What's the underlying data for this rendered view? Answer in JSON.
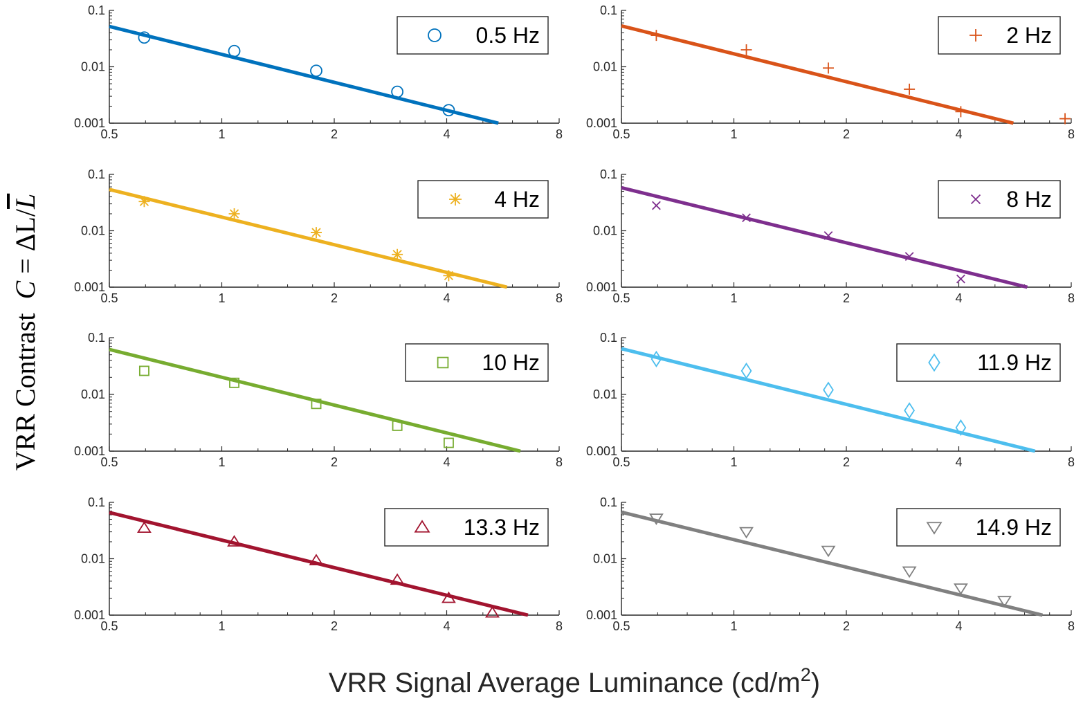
{
  "figure": {
    "xlabel": "VRR Signal Average Luminance (cd/m",
    "xlabel_sup": "2",
    "xlabel_tail": ")",
    "ylabel_text": "VRR Contrast",
    "ylabel_math_c": "C",
    "ylabel_math_eq": " = ΔL/",
    "ylabel_math_lbar": "L"
  },
  "chart_data": [
    {
      "type": "scatter",
      "title": "",
      "legend": "0.5 Hz",
      "legend_position": "top-right",
      "color": "#0072BD",
      "marker": "circle",
      "xscale": "log2",
      "yscale": "log10",
      "xlim": [
        0.5,
        8
      ],
      "ylim": [
        0.001,
        0.1
      ],
      "x_ticks": [
        0.5,
        1,
        2,
        4,
        8
      ],
      "x_tick_labels": [
        "0.5",
        "1",
        "2",
        "4",
        "8"
      ],
      "y_ticks": [
        0.001,
        0.01,
        0.1
      ],
      "y_tick_labels": [
        "0.001",
        "0.01",
        "0.1"
      ],
      "points": {
        "x": [
          0.62,
          1.08,
          1.79,
          2.95,
          4.05
        ],
        "y": [
          0.033,
          0.019,
          0.0085,
          0.0036,
          0.0017
        ]
      },
      "fit_line": {
        "x": [
          0.5,
          5.5
        ],
        "y": [
          0.052,
          0.001
        ]
      }
    },
    {
      "type": "scatter",
      "title": "",
      "legend": "2 Hz",
      "legend_position": "top-right",
      "color": "#D95319",
      "marker": "plus",
      "xscale": "log2",
      "yscale": "log10",
      "xlim": [
        0.5,
        8
      ],
      "ylim": [
        0.001,
        0.1
      ],
      "x_ticks": [
        0.5,
        1,
        2,
        4,
        8
      ],
      "x_tick_labels": [
        "0.5",
        "1",
        "2",
        "4",
        "8"
      ],
      "y_ticks": [
        0.001,
        0.01,
        0.1
      ],
      "y_tick_labels": [
        "0.001",
        "0.01",
        "0.1"
      ],
      "points": {
        "x": [
          0.62,
          1.08,
          1.79,
          2.95,
          4.05,
          7.7
        ],
        "y": [
          0.036,
          0.02,
          0.0095,
          0.004,
          0.0016,
          0.0012
        ]
      },
      "fit_line": {
        "x": [
          0.5,
          5.6
        ],
        "y": [
          0.053,
          0.001
        ]
      }
    },
    {
      "type": "scatter",
      "title": "",
      "legend": "4 Hz",
      "legend_position": "top-right",
      "color": "#EDB120",
      "marker": "asterisk",
      "xscale": "log2",
      "yscale": "log10",
      "xlim": [
        0.5,
        8
      ],
      "ylim": [
        0.001,
        0.1
      ],
      "x_ticks": [
        0.5,
        1,
        2,
        4,
        8
      ],
      "x_tick_labels": [
        "0.5",
        "1",
        "2",
        "4",
        "8"
      ],
      "y_ticks": [
        0.001,
        0.01,
        0.1
      ],
      "y_tick_labels": [
        "0.001",
        "0.01",
        "0.1"
      ],
      "points": {
        "x": [
          0.62,
          1.08,
          1.79,
          2.95,
          4.05
        ],
        "y": [
          0.033,
          0.02,
          0.0093,
          0.0038,
          0.0016
        ]
      },
      "fit_line": {
        "x": [
          0.5,
          5.8
        ],
        "y": [
          0.054,
          0.001
        ]
      }
    },
    {
      "type": "scatter",
      "title": "",
      "legend": "8 Hz",
      "legend_position": "top-right",
      "color": "#7E2F8E",
      "marker": "cross",
      "xscale": "log2",
      "yscale": "log10",
      "xlim": [
        0.5,
        8
      ],
      "ylim": [
        0.001,
        0.1
      ],
      "x_ticks": [
        0.5,
        1,
        2,
        4,
        8
      ],
      "x_tick_labels": [
        "0.5",
        "1",
        "2",
        "4",
        "8"
      ],
      "y_ticks": [
        0.001,
        0.01,
        0.1
      ],
      "y_tick_labels": [
        "0.001",
        "0.01",
        "0.1"
      ],
      "points": {
        "x": [
          0.62,
          1.08,
          1.79,
          2.95,
          4.05
        ],
        "y": [
          0.028,
          0.017,
          0.0082,
          0.0035,
          0.0014
        ]
      },
      "fit_line": {
        "x": [
          0.5,
          6.1
        ],
        "y": [
          0.058,
          0.001
        ]
      }
    },
    {
      "type": "scatter",
      "title": "",
      "legend": "10 Hz",
      "legend_position": "top-right",
      "color": "#77AC30",
      "marker": "square",
      "xscale": "log2",
      "yscale": "log10",
      "xlim": [
        0.5,
        8
      ],
      "ylim": [
        0.001,
        0.1
      ],
      "x_ticks": [
        0.5,
        1,
        2,
        4,
        8
      ],
      "x_tick_labels": [
        "0.5",
        "1",
        "2",
        "4",
        "8"
      ],
      "y_ticks": [
        0.001,
        0.01,
        0.1
      ],
      "y_tick_labels": [
        "0.001",
        "0.01",
        "0.1"
      ],
      "points": {
        "x": [
          0.62,
          1.08,
          1.79,
          2.95,
          4.05
        ],
        "y": [
          0.026,
          0.016,
          0.0068,
          0.0028,
          0.0014
        ]
      },
      "fit_line": {
        "x": [
          0.5,
          6.3
        ],
        "y": [
          0.062,
          0.001
        ]
      }
    },
    {
      "type": "scatter",
      "title": "",
      "legend": "11.9 Hz",
      "legend_position": "top-right",
      "color": "#4DBEEE",
      "marker": "diamond",
      "xscale": "log2",
      "yscale": "log10",
      "xlim": [
        0.5,
        8
      ],
      "ylim": [
        0.001,
        0.1
      ],
      "x_ticks": [
        0.5,
        1,
        2,
        4,
        8
      ],
      "x_tick_labels": [
        "0.5",
        "1",
        "2",
        "4",
        "8"
      ],
      "y_ticks": [
        0.001,
        0.01,
        0.1
      ],
      "y_tick_labels": [
        "0.001",
        "0.01",
        "0.1"
      ],
      "points": {
        "x": [
          0.62,
          1.08,
          1.79,
          2.95,
          4.05
        ],
        "y": [
          0.042,
          0.026,
          0.012,
          0.0052,
          0.0026
        ]
      },
      "fit_line": {
        "x": [
          0.5,
          6.4
        ],
        "y": [
          0.064,
          0.001
        ]
      }
    },
    {
      "type": "scatter",
      "title": "",
      "legend": "13.3 Hz",
      "legend_position": "top-right",
      "color": "#A2142F",
      "marker": "triangle-up",
      "xscale": "log2",
      "yscale": "log10",
      "xlim": [
        0.5,
        8
      ],
      "ylim": [
        0.001,
        0.1
      ],
      "x_ticks": [
        0.5,
        1,
        2,
        4,
        8
      ],
      "x_tick_labels": [
        "0.5",
        "1",
        "2",
        "4",
        "8"
      ],
      "y_ticks": [
        0.001,
        0.01,
        0.1
      ],
      "y_tick_labels": [
        "0.001",
        "0.01",
        "0.1"
      ],
      "points": {
        "x": [
          0.62,
          1.08,
          1.79,
          2.95,
          4.05,
          5.3
        ],
        "y": [
          0.035,
          0.02,
          0.0093,
          0.0042,
          0.002,
          0.0011
        ]
      },
      "fit_line": {
        "x": [
          0.5,
          6.6
        ],
        "y": [
          0.066,
          0.001
        ]
      }
    },
    {
      "type": "scatter",
      "title": "",
      "legend": "14.9 Hz",
      "legend_position": "top-right",
      "color": "#808080",
      "marker": "triangle-down",
      "xscale": "log2",
      "yscale": "log10",
      "xlim": [
        0.5,
        8
      ],
      "ylim": [
        0.001,
        0.1
      ],
      "x_ticks": [
        0.5,
        1,
        2,
        4,
        8
      ],
      "x_tick_labels": [
        "0.5",
        "1",
        "2",
        "4",
        "8"
      ],
      "y_ticks": [
        0.001,
        0.01,
        0.1
      ],
      "y_tick_labels": [
        "0.001",
        "0.01",
        "0.1"
      ],
      "points": {
        "x": [
          0.62,
          1.08,
          1.79,
          2.95,
          4.05,
          5.3
        ],
        "y": [
          0.052,
          0.03,
          0.014,
          0.006,
          0.003,
          0.0018
        ]
      },
      "fit_line": {
        "x": [
          0.5,
          6.7
        ],
        "y": [
          0.067,
          0.001
        ]
      }
    }
  ]
}
